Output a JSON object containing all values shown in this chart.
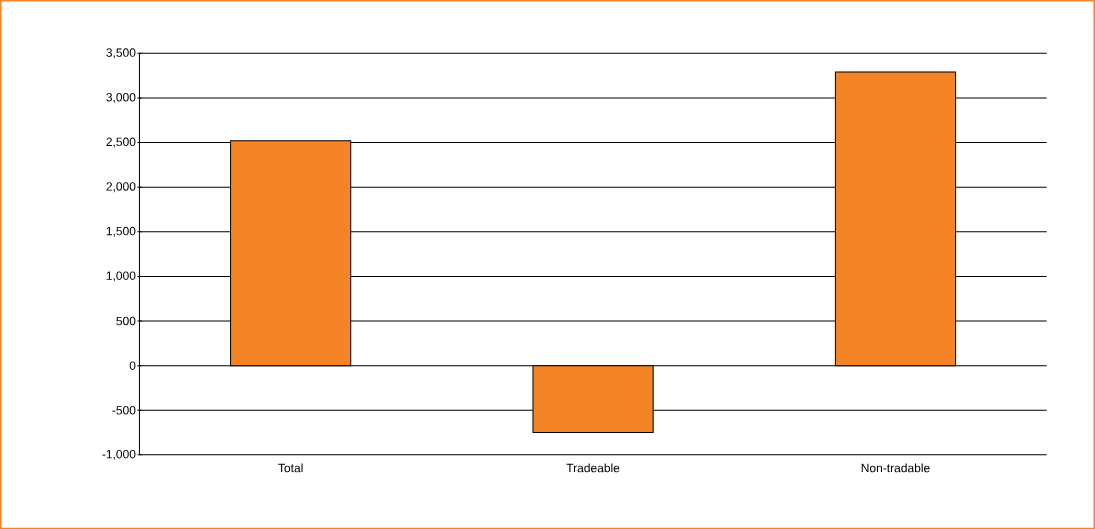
{
  "chart_data": {
    "type": "bar",
    "categories": [
      "Total",
      "Tradeable",
      "Non-tradable"
    ],
    "values": [
      2520,
      -750,
      3290
    ],
    "color": "#f58426",
    "ylim": [
      -1000,
      3500
    ],
    "yticks": [
      {
        "value": -1000,
        "label": "-1,000"
      },
      -500,
      0,
      500,
      {
        "value": 1000,
        "label": "1,000"
      },
      {
        "value": 1500,
        "label": "1,500"
      },
      {
        "value": 2000,
        "label": "2,000"
      },
      {
        "value": 2500,
        "label": "2,500"
      },
      {
        "value": 3000,
        "label": "3,000"
      },
      {
        "value": 3500,
        "label": "3,500"
      }
    ],
    "grid": "y"
  }
}
